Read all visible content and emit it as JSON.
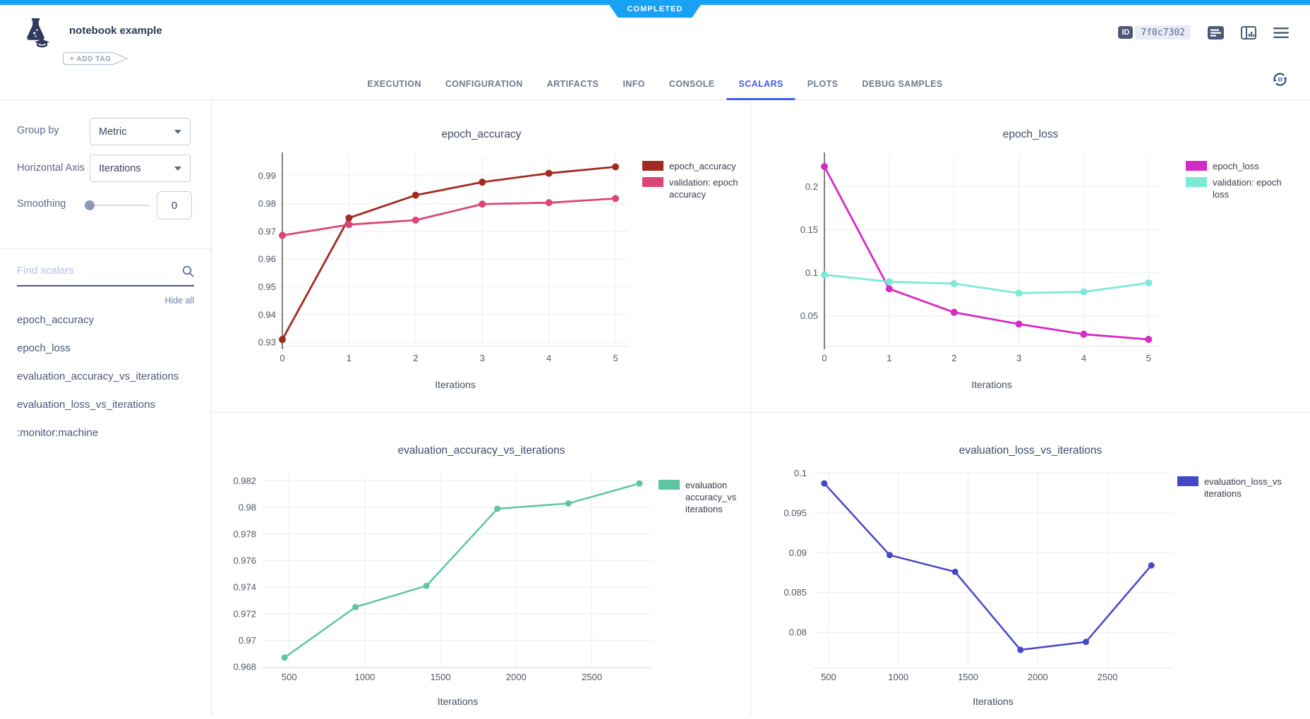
{
  "header": {
    "status_ribbon": "COMPLETED",
    "title": "notebook example",
    "add_tag_label": "+ ADD TAG",
    "id_label": "ID",
    "id_value": "7f0c7302"
  },
  "tabs": {
    "items": [
      "EXECUTION",
      "CONFIGURATION",
      "ARTIFACTS",
      "INFO",
      "CONSOLE",
      "SCALARS",
      "PLOTS",
      "DEBUG SAMPLES"
    ],
    "active": "SCALARS"
  },
  "sidebar": {
    "group_by_label": "Group by",
    "group_by_value": "Metric",
    "horizontal_axis_label": "Horizontal Axis",
    "horizontal_axis_value": "Iterations",
    "smoothing_label": "Smoothing",
    "smoothing_value": "0",
    "search_placeholder": "Find scalars",
    "hide_all_label": "Hide all",
    "metrics": [
      "epoch_accuracy",
      "epoch_loss",
      "evaluation_accuracy_vs_iterations",
      "evaluation_loss_vs_iterations",
      ":monitor:machine"
    ]
  },
  "colors": {
    "accent_blue": "#18a2f6",
    "active_tab_blue": "#4059f2",
    "epoch_accuracy": "#a32a21",
    "validation_epoch_accuracy": "#dc4677",
    "epoch_loss": "#d62ac4",
    "validation_epoch_loss": "#7ce9d6",
    "evaluation_accuracy": "#5dc5a3",
    "evaluation_loss": "#4547c9"
  },
  "chart_data": [
    {
      "type": "line",
      "title": "epoch_accuracy",
      "xlabel": "Iterations",
      "xlim": [
        0,
        5.19
      ],
      "ylim": [
        0.9285,
        0.9974
      ],
      "zeroline": true,
      "x_ticks": [
        {
          "v": 0,
          "l": "0"
        },
        {
          "v": 1,
          "l": "1"
        },
        {
          "v": 2,
          "l": "2"
        },
        {
          "v": 3,
          "l": "3"
        },
        {
          "v": 4,
          "l": "4"
        },
        {
          "v": 5,
          "l": "5"
        }
      ],
      "y_ticks": [
        {
          "v": 0.93,
          "l": "0.93"
        },
        {
          "v": 0.94,
          "l": "0.94"
        },
        {
          "v": 0.95,
          "l": "0.95"
        },
        {
          "v": 0.96,
          "l": "0.96"
        },
        {
          "v": 0.97,
          "l": "0.97"
        },
        {
          "v": 0.98,
          "l": "0.98"
        },
        {
          "v": 0.99,
          "l": "0.99"
        }
      ],
      "series": [
        {
          "name": "epoch_accuracy",
          "legend_lines": [
            "epoch_accuracy"
          ],
          "color": "#a32a21",
          "x": [
            0,
            1,
            2,
            3,
            4,
            5
          ],
          "y": [
            0.931,
            0.9748,
            0.983,
            0.9877,
            0.9909,
            0.9932
          ]
        },
        {
          "name": "validation: epoch accuracy",
          "legend_lines": [
            "validation: epoch",
            "accuracy"
          ],
          "color": "#dc4677",
          "x": [
            0,
            1,
            2,
            3,
            4,
            5
          ],
          "y": [
            0.9685,
            0.9724,
            0.974,
            0.9798,
            0.9803,
            0.9818
          ]
        }
      ]
    },
    {
      "type": "line",
      "title": "epoch_loss",
      "xlabel": "Iterations",
      "xlim": [
        0,
        5.16
      ],
      "ylim": [
        0.0142,
        0.2363
      ],
      "zeroline": true,
      "x_ticks": [
        {
          "v": 0,
          "l": "0"
        },
        {
          "v": 1,
          "l": "1"
        },
        {
          "v": 2,
          "l": "2"
        },
        {
          "v": 3,
          "l": "3"
        },
        {
          "v": 4,
          "l": "4"
        },
        {
          "v": 5,
          "l": "5"
        }
      ],
      "y_ticks": [
        {
          "v": 0.05,
          "l": "0.05"
        },
        {
          "v": 0.1,
          "l": "0.1"
        },
        {
          "v": 0.15,
          "l": "0.15"
        },
        {
          "v": 0.2,
          "l": "0.2"
        }
      ],
      "series": [
        {
          "name": "epoch_loss",
          "legend_lines": [
            "epoch_loss"
          ],
          "color": "#d62ac4",
          "x": [
            0,
            1,
            2,
            3,
            4,
            5
          ],
          "y": [
            0.2232,
            0.0811,
            0.0538,
            0.0402,
            0.0284,
            0.0224
          ]
        },
        {
          "name": "validation: epoch loss",
          "legend_lines": [
            "validation: epoch",
            "loss"
          ],
          "color": "#7ce9d6",
          "x": [
            0,
            1,
            2,
            3,
            4,
            5
          ],
          "y": [
            0.0975,
            0.0893,
            0.0871,
            0.0762,
            0.0776,
            0.088
          ]
        }
      ]
    },
    {
      "type": "line",
      "title": "evaluation_accuracy_vs_iterations",
      "xlabel": "Iterations",
      "xlim": [
        324,
        2903
      ],
      "ylim": [
        0.9679,
        0.9825
      ],
      "zeroline": false,
      "x_ticks": [
        {
          "v": 500,
          "l": "500"
        },
        {
          "v": 1000,
          "l": "1000"
        },
        {
          "v": 1500,
          "l": "1500"
        },
        {
          "v": 2000,
          "l": "2000"
        },
        {
          "v": 2500,
          "l": "2500"
        }
      ],
      "y_ticks": [
        {
          "v": 0.968,
          "l": "0.968"
        },
        {
          "v": 0.97,
          "l": "0.97"
        },
        {
          "v": 0.972,
          "l": "0.972"
        },
        {
          "v": 0.974,
          "l": "0.974"
        },
        {
          "v": 0.976,
          "l": "0.976"
        },
        {
          "v": 0.978,
          "l": "0.978"
        },
        {
          "v": 0.98,
          "l": "0.98"
        },
        {
          "v": 0.982,
          "l": "0.982"
        }
      ],
      "series": [
        {
          "name": "evaluation accuracy_vs iterations",
          "legend_lines": [
            "evaluation",
            "accuracy_vs",
            "iterations"
          ],
          "color": "#5dc5a3",
          "x": [
            469,
            938,
            1407,
            1876,
            2345,
            2814
          ],
          "y": [
            0.9687,
            0.9725,
            0.9741,
            0.9799,
            0.9803,
            0.9818
          ]
        }
      ]
    },
    {
      "type": "line",
      "title": "evaluation_loss_vs_iterations",
      "xlabel": "Iterations",
      "xlim": [
        389,
        2970
      ],
      "ylim": [
        0.0755,
        0.1003
      ],
      "zeroline": false,
      "x_ticks": [
        {
          "v": 500,
          "l": "500"
        },
        {
          "v": 1000,
          "l": "1000"
        },
        {
          "v": 1500,
          "l": "1500"
        },
        {
          "v": 2000,
          "l": "2000"
        },
        {
          "v": 2500,
          "l": "2500"
        }
      ],
      "y_ticks": [
        {
          "v": 0.08,
          "l": "0.08"
        },
        {
          "v": 0.085,
          "l": "0.085"
        },
        {
          "v": 0.09,
          "l": "0.09"
        },
        {
          "v": 0.095,
          "l": "0.095"
        },
        {
          "v": 0.1,
          "l": "0.1"
        }
      ],
      "series": [
        {
          "name": "evaluation_loss_vs iterations",
          "legend_lines": [
            "evaluation_loss_vs",
            "iterations"
          ],
          "color": "#4547c9",
          "x": [
            469,
            938,
            1407,
            1876,
            2345,
            2814
          ],
          "y": [
            0.0987,
            0.0897,
            0.0876,
            0.0778,
            0.0788,
            0.0884
          ]
        }
      ]
    }
  ]
}
